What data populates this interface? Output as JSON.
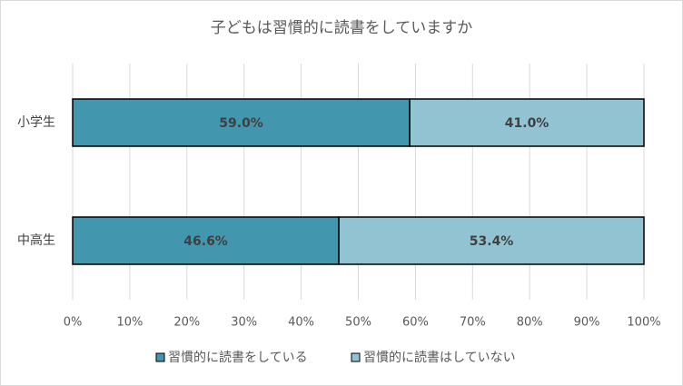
{
  "chart_data": {
    "type": "stacked-barh",
    "title": "子どもは習慣的に読書をしていますか",
    "categories": [
      "小学生",
      "中高生"
    ],
    "series": [
      {
        "name": "習慣的に読書をしている",
        "color": "#4297ae",
        "values": [
          59.0,
          46.6
        ],
        "value_labels": [
          "59.0%",
          "46.6%"
        ]
      },
      {
        "name": "習慣的に読書はしていない",
        "color": "#92c3d3",
        "values": [
          41.0,
          53.4
        ],
        "value_labels": [
          "41.0%",
          "53.4%"
        ]
      }
    ],
    "xlim": [
      0,
      100
    ],
    "xticks": [
      {
        "value": 0,
        "label": "0%"
      },
      {
        "value": 10,
        "label": "10%"
      },
      {
        "value": 20,
        "label": "20%"
      },
      {
        "value": 30,
        "label": "30%"
      },
      {
        "value": 40,
        "label": "40%"
      },
      {
        "value": 50,
        "label": "50%"
      },
      {
        "value": 60,
        "label": "60%"
      },
      {
        "value": 70,
        "label": "70%"
      },
      {
        "value": 80,
        "label": "80%"
      },
      {
        "value": 90,
        "label": "90%"
      },
      {
        "value": 100,
        "label": "100%"
      }
    ],
    "grid": true,
    "legend": "bottom"
  }
}
